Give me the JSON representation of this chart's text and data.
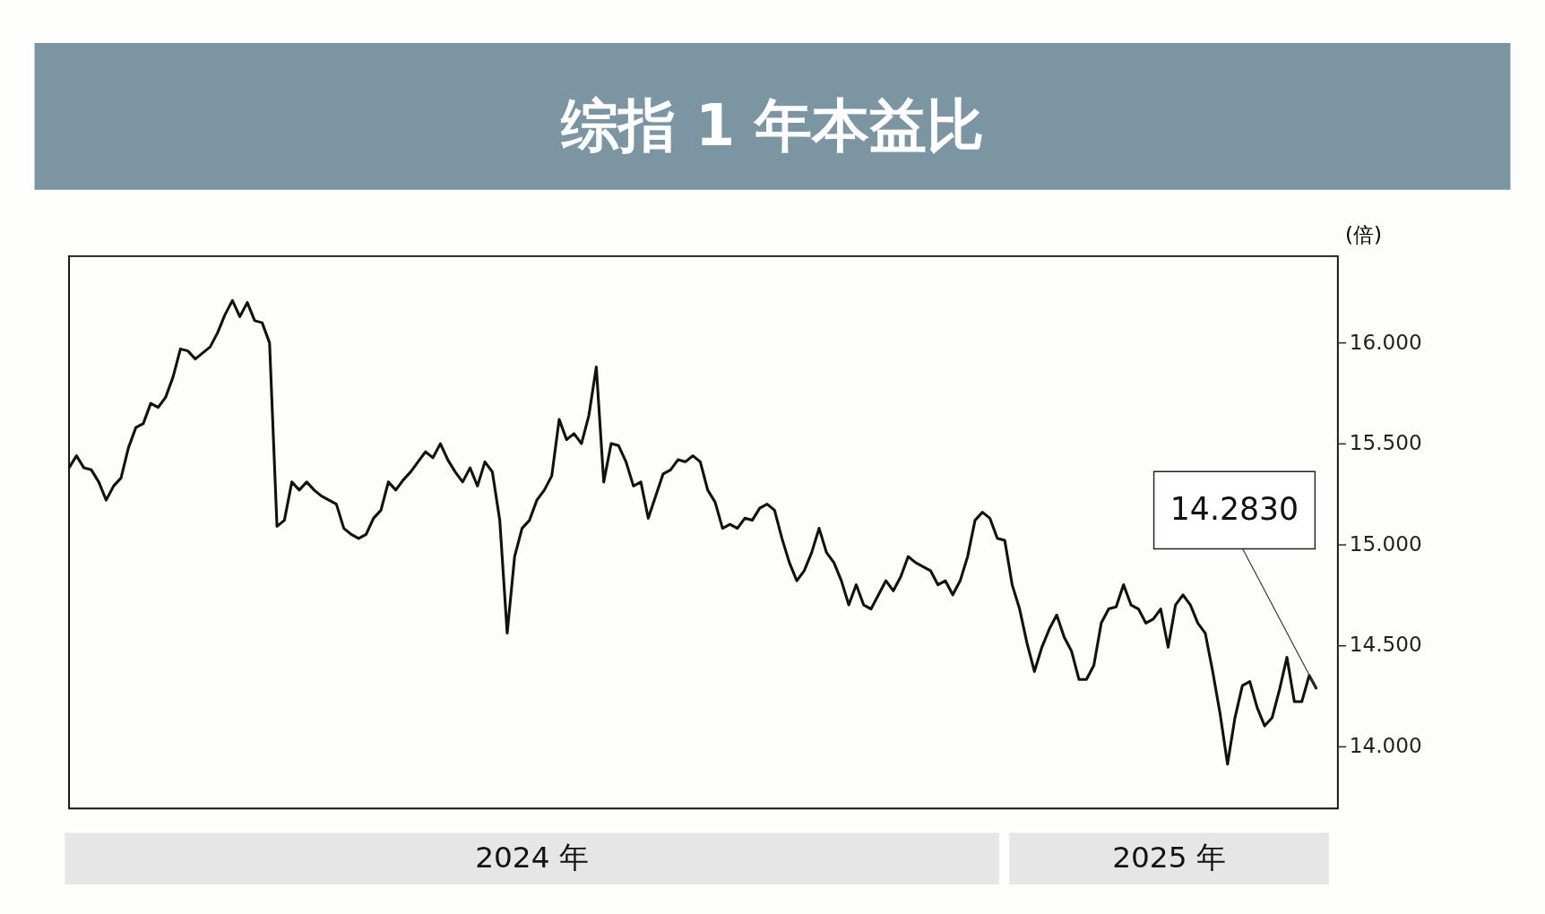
{
  "chart_data": {
    "type": "line",
    "title": "综指 1 年本益比",
    "ylabel": "(倍)",
    "categories": [
      null,
      null,
      null,
      null,
      null,
      null,
      null,
      null,
      null,
      null,
      null,
      null,
      null,
      null,
      null,
      null,
      null,
      null,
      null,
      null,
      null,
      null,
      null,
      null,
      null,
      null,
      null,
      null,
      null,
      null,
      null,
      null,
      null,
      null,
      null,
      null,
      null,
      null,
      null,
      null,
      null,
      null,
      null,
      null,
      null,
      null,
      null,
      null,
      null,
      null,
      null,
      null,
      null,
      null,
      null,
      null,
      null,
      null,
      null,
      null,
      null,
      null,
      null,
      null,
      null,
      null,
      null,
      null,
      null,
      null,
      null,
      null,
      null,
      null,
      null,
      null,
      null,
      null,
      null,
      null,
      null,
      null,
      null,
      null,
      null,
      null,
      null,
      null,
      null,
      null,
      null,
      null,
      null,
      null,
      null,
      null,
      null,
      null,
      null,
      null,
      null,
      null,
      null,
      null,
      null,
      null,
      null,
      null,
      null,
      null,
      null,
      null,
      null,
      null,
      null,
      null,
      null,
      null,
      null,
      null,
      null,
      null,
      null,
      null,
      null,
      null,
      null,
      null,
      null,
      null,
      null,
      null,
      null,
      null,
      null,
      null,
      null,
      null,
      null,
      null,
      null,
      null,
      null,
      null,
      null,
      null,
      null,
      null,
      null,
      null,
      null,
      null,
      null,
      null,
      null,
      null,
      null,
      null,
      null,
      null,
      null,
      null,
      null,
      null,
      null,
      null,
      null,
      null,
      null
    ],
    "series": [
      {
        "color": "#111111",
        "values": [
          15.38,
          15.44,
          15.38,
          15.37,
          15.31,
          15.22,
          15.29,
          15.33,
          15.48,
          15.58,
          15.6,
          15.7,
          15.68,
          15.73,
          15.83,
          15.97,
          15.96,
          15.92,
          15.95,
          15.98,
          16.05,
          16.14,
          16.21,
          16.13,
          16.2,
          16.11,
          16.1,
          16.0,
          15.09,
          15.12,
          15.31,
          15.27,
          15.31,
          15.27,
          15.24,
          15.22,
          15.2,
          15.08,
          15.05,
          15.03,
          15.05,
          15.13,
          15.17,
          15.31,
          15.27,
          15.32,
          15.36,
          15.41,
          15.46,
          15.43,
          15.5,
          15.42,
          15.36,
          15.31,
          15.38,
          15.29,
          15.41,
          15.36,
          15.12,
          14.56,
          14.94,
          15.08,
          15.12,
          15.22,
          15.27,
          15.34,
          15.62,
          15.52,
          15.55,
          15.5,
          15.64,
          15.88,
          15.31,
          15.5,
          15.49,
          15.41,
          15.29,
          15.31,
          15.13,
          15.24,
          15.35,
          15.37,
          15.42,
          15.41,
          15.44,
          15.41,
          15.27,
          15.21,
          15.08,
          15.1,
          15.08,
          15.13,
          15.12,
          15.18,
          15.2,
          15.17,
          15.03,
          14.91,
          14.82,
          14.87,
          14.96,
          15.08,
          14.96,
          14.91,
          14.82,
          14.7,
          14.8,
          14.7,
          14.68,
          14.75,
          14.82,
          14.77,
          14.84,
          14.94,
          14.91,
          14.89,
          14.87,
          14.8,
          14.82,
          14.75,
          14.82,
          14.94,
          15.12,
          15.16,
          15.13,
          15.03,
          15.02,
          14.8,
          14.68,
          14.51,
          14.37,
          14.49,
          14.58,
          14.65,
          14.54,
          14.47,
          14.33,
          14.33,
          14.4,
          14.61,
          14.68,
          14.69,
          14.8,
          14.7,
          14.68,
          14.61,
          14.63,
          14.68,
          14.49,
          14.7,
          14.75,
          14.7,
          14.61,
          14.56,
          14.37,
          14.16,
          13.91,
          14.14,
          14.3,
          14.32,
          14.19,
          14.1,
          14.14,
          14.28,
          14.44,
          14.22,
          14.22,
          14.35,
          14.283
        ]
      }
    ],
    "ylim": [
      13.69,
      16.43
    ],
    "yticks": [
      {
        "value": 14,
        "label": "14.000"
      },
      {
        "value": 14.5,
        "label": "14.500"
      },
      {
        "value": 15,
        "label": "15.000"
      },
      {
        "value": 15.5,
        "label": "15.500"
      },
      {
        "value": 16,
        "label": "16.000"
      }
    ],
    "annotations": [
      "14.2830",
      "2024 年",
      "2025 年"
    ],
    "grid": false,
    "marker": "none",
    "line_style": "solid"
  }
}
